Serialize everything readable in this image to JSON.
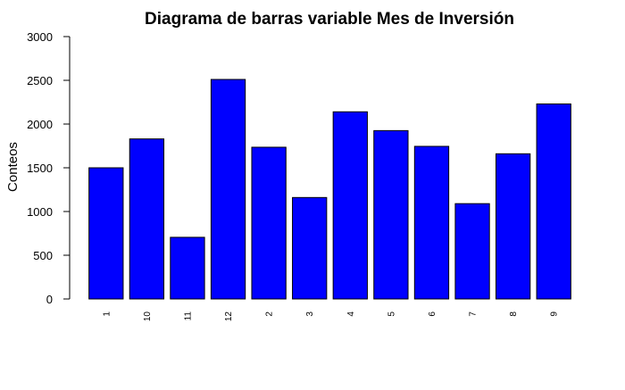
{
  "chart_data": {
    "type": "bar",
    "title": "Diagrama de barras variable Mes de Inversión",
    "xlabel": "",
    "ylabel": "Conteos",
    "categories": [
      "1",
      "10",
      "11",
      "12",
      "2",
      "3",
      "4",
      "5",
      "6",
      "7",
      "8",
      "9"
    ],
    "values": [
      1500,
      1830,
      705,
      2510,
      1735,
      1160,
      2140,
      1925,
      1745,
      1090,
      1660,
      2230
    ],
    "ylim": [
      0,
      3000
    ],
    "yticks": [
      0,
      500,
      1000,
      1500,
      2000,
      2500,
      3000
    ],
    "grid": false,
    "legend": "none",
    "colors": {
      "bar_fill": "#0000FF",
      "bar_stroke": "#000000",
      "axis": "#000000"
    }
  }
}
